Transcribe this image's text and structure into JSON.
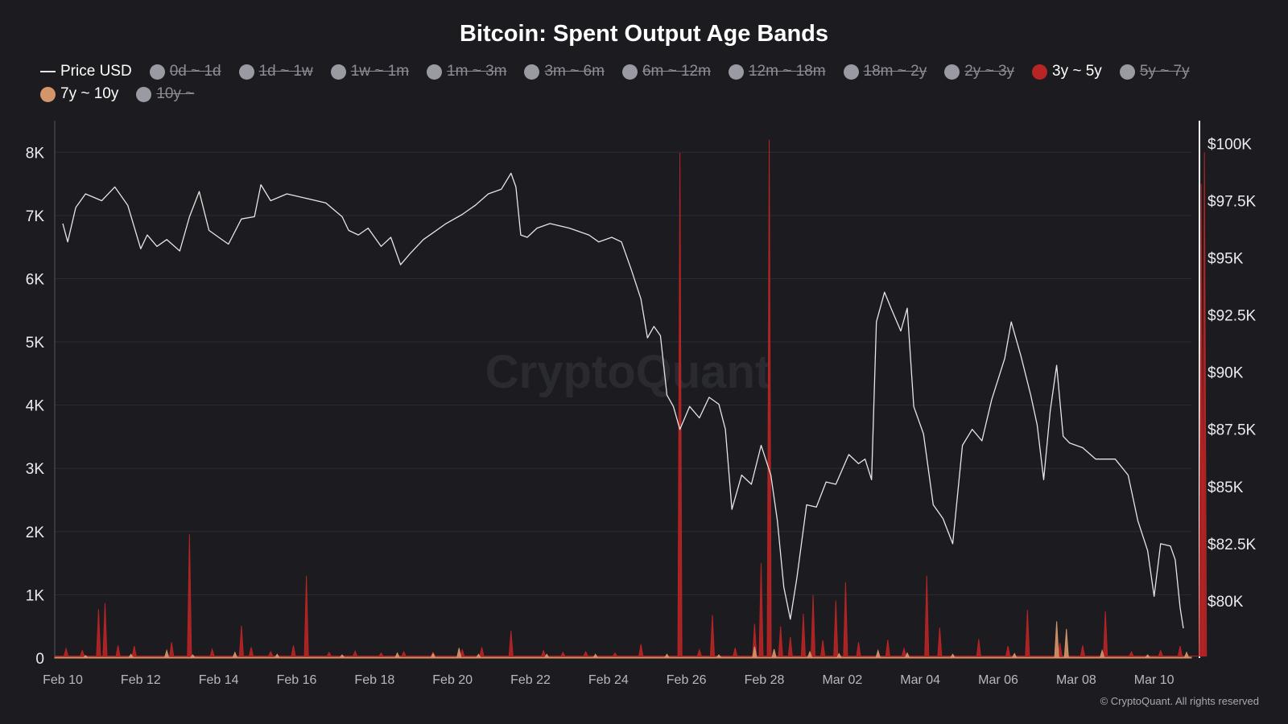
{
  "chart_data": {
    "type": "area",
    "title": "Bitcoin: Spent Output Age Bands",
    "watermark": "CryptoQuant",
    "copyright": "© CryptoQuant. All rights reserved",
    "legend_position": "top",
    "grid": true,
    "x_axis": {
      "range": [
        "2025-02-10",
        "2025-03-10T18:00"
      ],
      "tick_labels": [
        "Feb 10",
        "Feb 12",
        "Feb 14",
        "Feb 16",
        "Feb 18",
        "Feb 20",
        "Feb 22",
        "Feb 24",
        "Feb 26",
        "Feb 28",
        "Mar 02",
        "Mar 04",
        "Mar 06",
        "Mar 08",
        "Mar 10"
      ],
      "tick_dates": [
        "2025-02-10",
        "2025-02-12",
        "2025-02-14",
        "2025-02-16",
        "2025-02-18",
        "2025-02-20",
        "2025-02-22",
        "2025-02-24",
        "2025-02-26",
        "2025-02-28",
        "2025-03-02",
        "2025-03-04",
        "2025-03-06",
        "2025-03-08",
        "2025-03-10"
      ]
    },
    "y_left": {
      "range": [
        0,
        8500
      ],
      "ticks": [
        0,
        1000,
        2000,
        3000,
        4000,
        5000,
        6000,
        7000,
        8000
      ],
      "tick_labels": [
        "0",
        "1K",
        "2K",
        "3K",
        "4K",
        "5K",
        "6K",
        "7K",
        "8K"
      ]
    },
    "y_right": {
      "range": [
        77500,
        101000
      ],
      "ticks": [
        80000,
        82500,
        85000,
        87500,
        90000,
        92500,
        95000,
        97500,
        100000
      ],
      "tick_labels": [
        "$80K",
        "$82.5K",
        "$85K",
        "$87.5K",
        "$90K",
        "$92.5K",
        "$95K",
        "$97.5K",
        "$100K"
      ]
    },
    "legend": [
      {
        "label": "Price USD",
        "color": "#e6e6e6",
        "enabled": true,
        "marker": "line"
      },
      {
        "label": "0d ~ 1d",
        "color": "#9a9aa2",
        "enabled": false
      },
      {
        "label": "1d ~ 1w",
        "color": "#9a9aa2",
        "enabled": false
      },
      {
        "label": "1w ~ 1m",
        "color": "#9a9aa2",
        "enabled": false
      },
      {
        "label": "1m ~ 3m",
        "color": "#9a9aa2",
        "enabled": false
      },
      {
        "label": "3m ~ 6m",
        "color": "#9a9aa2",
        "enabled": false
      },
      {
        "label": "6m ~ 12m",
        "color": "#9a9aa2",
        "enabled": false
      },
      {
        "label": "12m ~ 18m",
        "color": "#9a9aa2",
        "enabled": false
      },
      {
        "label": "18m ~ 2y",
        "color": "#9a9aa2",
        "enabled": false
      },
      {
        "label": "2y ~ 3y",
        "color": "#9a9aa2",
        "enabled": false
      },
      {
        "label": "3y ~ 5y",
        "color": "#b82525",
        "enabled": true
      },
      {
        "label": "5y ~ 7y",
        "color": "#9a9aa2",
        "enabled": false
      },
      {
        "label": "7y ~ 10y",
        "color": "#d4956a",
        "enabled": true
      },
      {
        "label": "10y ~",
        "color": "#9a9aa2",
        "enabled": false
      }
    ],
    "series": [
      {
        "name": "Price USD",
        "axis": "right",
        "type": "line",
        "color": "#e6e6e6",
        "points": [
          [
            "2025-02-10T00:00",
            96500
          ],
          [
            "2025-02-10T03:00",
            95700
          ],
          [
            "2025-02-10T08:00",
            97200
          ],
          [
            "2025-02-10T14:00",
            97800
          ],
          [
            "2025-02-11T00:00",
            97500
          ],
          [
            "2025-02-11T08:00",
            98100
          ],
          [
            "2025-02-11T16:00",
            97300
          ],
          [
            "2025-02-12T00:00",
            95400
          ],
          [
            "2025-02-12T04:00",
            96000
          ],
          [
            "2025-02-12T10:00",
            95500
          ],
          [
            "2025-02-12T16:00",
            95800
          ],
          [
            "2025-02-13T00:00",
            95300
          ],
          [
            "2025-02-13T06:00",
            96800
          ],
          [
            "2025-02-13T12:00",
            97900
          ],
          [
            "2025-02-13T18:00",
            96200
          ],
          [
            "2025-02-14T00:00",
            95900
          ],
          [
            "2025-02-14T06:00",
            95600
          ],
          [
            "2025-02-14T14:00",
            96700
          ],
          [
            "2025-02-14T22:00",
            96800
          ],
          [
            "2025-02-15T02:00",
            98200
          ],
          [
            "2025-02-15T08:00",
            97500
          ],
          [
            "2025-02-15T18:00",
            97800
          ],
          [
            "2025-02-16T06:00",
            97600
          ],
          [
            "2025-02-16T18:00",
            97400
          ],
          [
            "2025-02-17T04:00",
            96800
          ],
          [
            "2025-02-17T08:00",
            96200
          ],
          [
            "2025-02-17T14:00",
            96000
          ],
          [
            "2025-02-17T20:00",
            96300
          ],
          [
            "2025-02-18T04:00",
            95500
          ],
          [
            "2025-02-18T10:00",
            95900
          ],
          [
            "2025-02-18T16:00",
            94700
          ],
          [
            "2025-02-18T22:00",
            95200
          ],
          [
            "2025-02-19T06:00",
            95800
          ],
          [
            "2025-02-19T12:00",
            96100
          ],
          [
            "2025-02-19T20:00",
            96500
          ],
          [
            "2025-02-20T06:00",
            96900
          ],
          [
            "2025-02-20T14:00",
            97300
          ],
          [
            "2025-02-20T22:00",
            97800
          ],
          [
            "2025-02-21T06:00",
            98000
          ],
          [
            "2025-02-21T12:00",
            98700
          ],
          [
            "2025-02-21T15:00",
            98100
          ],
          [
            "2025-02-21T18:00",
            96000
          ],
          [
            "2025-02-21T22:00",
            95900
          ],
          [
            "2025-02-22T04:00",
            96300
          ],
          [
            "2025-02-22T12:00",
            96500
          ],
          [
            "2025-02-23T00:00",
            96300
          ],
          [
            "2025-02-23T12:00",
            96000
          ],
          [
            "2025-02-23T18:00",
            95700
          ],
          [
            "2025-02-24T02:00",
            95900
          ],
          [
            "2025-02-24T08:00",
            95700
          ],
          [
            "2025-02-24T14:00",
            94500
          ],
          [
            "2025-02-24T20:00",
            93200
          ],
          [
            "2025-02-25T00:00",
            91500
          ],
          [
            "2025-02-25T04:00",
            92000
          ],
          [
            "2025-02-25T08:00",
            91600
          ],
          [
            "2025-02-25T12:00",
            89000
          ],
          [
            "2025-02-25T16:00",
            88500
          ],
          [
            "2025-02-25T20:00",
            87500
          ],
          [
            "2025-02-26T02:00",
            88500
          ],
          [
            "2025-02-26T08:00",
            88000
          ],
          [
            "2025-02-26T14:00",
            88900
          ],
          [
            "2025-02-26T20:00",
            88600
          ],
          [
            "2025-02-27T00:00",
            87500
          ],
          [
            "2025-02-27T04:00",
            84000
          ],
          [
            "2025-02-27T10:00",
            85500
          ],
          [
            "2025-02-27T16:00",
            85100
          ],
          [
            "2025-02-27T22:00",
            86800
          ],
          [
            "2025-02-28T04:00",
            85500
          ],
          [
            "2025-02-28T08:00",
            83500
          ],
          [
            "2025-02-28T12:00",
            80600
          ],
          [
            "2025-02-28T16:00",
            79200
          ],
          [
            "2025-02-28T20:00",
            81000
          ],
          [
            "2025-03-01T02:00",
            84200
          ],
          [
            "2025-03-01T08:00",
            84100
          ],
          [
            "2025-03-01T14:00",
            85200
          ],
          [
            "2025-03-01T20:00",
            85100
          ],
          [
            "2025-03-02T04:00",
            86400
          ],
          [
            "2025-03-02T10:00",
            86000
          ],
          [
            "2025-03-02T14:00",
            86200
          ],
          [
            "2025-03-02T18:00",
            85300
          ],
          [
            "2025-03-02T21:00",
            92200
          ],
          [
            "2025-03-03T02:00",
            93500
          ],
          [
            "2025-03-03T06:00",
            92800
          ],
          [
            "2025-03-03T12:00",
            91800
          ],
          [
            "2025-03-03T16:00",
            92800
          ],
          [
            "2025-03-03T20:00",
            88500
          ],
          [
            "2025-03-04T02:00",
            87300
          ],
          [
            "2025-03-04T08:00",
            84200
          ],
          [
            "2025-03-04T14:00",
            83600
          ],
          [
            "2025-03-04T20:00",
            82500
          ],
          [
            "2025-03-05T02:00",
            86800
          ],
          [
            "2025-03-05T08:00",
            87500
          ],
          [
            "2025-03-05T14:00",
            87000
          ],
          [
            "2025-03-05T20:00",
            88800
          ],
          [
            "2025-03-06T04:00",
            90600
          ],
          [
            "2025-03-06T08:00",
            92200
          ],
          [
            "2025-03-06T14:00",
            90700
          ],
          [
            "2025-03-06T20:00",
            89000
          ],
          [
            "2025-03-07T00:00",
            87700
          ],
          [
            "2025-03-07T04:00",
            85300
          ],
          [
            "2025-03-07T08:00",
            88300
          ],
          [
            "2025-03-07T12:00",
            90300
          ],
          [
            "2025-03-07T16:00",
            87200
          ],
          [
            "2025-03-07T20:00",
            86900
          ],
          [
            "2025-03-08T04:00",
            86700
          ],
          [
            "2025-03-08T12:00",
            86200
          ],
          [
            "2025-03-09T00:00",
            86200
          ],
          [
            "2025-03-09T08:00",
            85500
          ],
          [
            "2025-03-09T14:00",
            83500
          ],
          [
            "2025-03-09T20:00",
            82200
          ],
          [
            "2025-03-10T00:00",
            80200
          ],
          [
            "2025-03-10T04:00",
            82500
          ],
          [
            "2025-03-10T10:00",
            82400
          ],
          [
            "2025-03-10T13:00",
            81800
          ],
          [
            "2025-03-10T16:00",
            79700
          ],
          [
            "2025-03-10T18:00",
            78800
          ]
        ]
      },
      {
        "name": "3y ~ 5y",
        "axis": "left",
        "type": "area",
        "color": "#b82525",
        "baseline": 30,
        "points": [
          [
            "2025-02-10T02:00",
            150
          ],
          [
            "2025-02-10T12:00",
            120
          ],
          [
            "2025-02-10T22:00",
            770
          ],
          [
            "2025-02-11T02:00",
            870
          ],
          [
            "2025-02-11T10:00",
            200
          ],
          [
            "2025-02-11T20:00",
            190
          ],
          [
            "2025-02-12T19:00",
            250
          ],
          [
            "2025-02-13T06:00",
            1960
          ],
          [
            "2025-02-13T20:00",
            140
          ],
          [
            "2025-02-14T14:00",
            510
          ],
          [
            "2025-02-14T20:00",
            170
          ],
          [
            "2025-02-15T08:00",
            100
          ],
          [
            "2025-02-15T22:00",
            200
          ],
          [
            "2025-02-16T06:00",
            1300
          ],
          [
            "2025-02-16T20:00",
            90
          ],
          [
            "2025-02-17T12:00",
            110
          ],
          [
            "2025-02-18T04:00",
            80
          ],
          [
            "2025-02-18T18:00",
            100
          ],
          [
            "2025-02-19T12:00",
            90
          ],
          [
            "2025-02-20T06:00",
            130
          ],
          [
            "2025-02-20T18:00",
            170
          ],
          [
            "2025-02-21T12:00",
            430
          ],
          [
            "2025-02-22T08:00",
            120
          ],
          [
            "2025-02-22T20:00",
            90
          ],
          [
            "2025-02-23T10:00",
            100
          ],
          [
            "2025-02-24T04:00",
            80
          ],
          [
            "2025-02-24T20:00",
            220
          ],
          [
            "2025-02-25T20:00",
            7990
          ],
          [
            "2025-02-26T08:00",
            130
          ],
          [
            "2025-02-26T16:00",
            680
          ],
          [
            "2025-02-27T06:00",
            160
          ],
          [
            "2025-02-27T18:00",
            540
          ],
          [
            "2025-02-27T22:00",
            1500
          ],
          [
            "2025-02-28T03:00",
            8200
          ],
          [
            "2025-02-28T10:00",
            500
          ],
          [
            "2025-02-28T16:00",
            330
          ],
          [
            "2025-03-01T00:00",
            700
          ],
          [
            "2025-03-01T06:00",
            990
          ],
          [
            "2025-03-01T12:00",
            280
          ],
          [
            "2025-03-01T20:00",
            910
          ],
          [
            "2025-03-02T02:00",
            1200
          ],
          [
            "2025-03-02T10:00",
            250
          ],
          [
            "2025-03-03T04:00",
            290
          ],
          [
            "2025-03-03T14:00",
            150
          ],
          [
            "2025-03-04T04:00",
            1300
          ],
          [
            "2025-03-04T12:00",
            480
          ],
          [
            "2025-03-05T12:00",
            300
          ],
          [
            "2025-03-06T06:00",
            190
          ],
          [
            "2025-03-06T18:00",
            760
          ],
          [
            "2025-03-07T14:00",
            240
          ],
          [
            "2025-03-08T04:00",
            200
          ],
          [
            "2025-03-08T18:00",
            740
          ],
          [
            "2025-03-09T10:00",
            100
          ],
          [
            "2025-03-10T04:00",
            120
          ],
          [
            "2025-03-10T16:00",
            190
          ],
          [
            "2025-03-11T05:00",
            7500
          ],
          [
            "2025-03-11T07:00",
            8000
          ]
        ]
      },
      {
        "name": "7y ~ 10y",
        "axis": "left",
        "type": "area",
        "color": "#d4956a",
        "baseline": 10,
        "points": [
          [
            "2025-02-10T14:00",
            40
          ],
          [
            "2025-02-11T18:00",
            60
          ],
          [
            "2025-02-12T16:00",
            120
          ],
          [
            "2025-02-13T08:00",
            50
          ],
          [
            "2025-02-14T10:00",
            90
          ],
          [
            "2025-02-15T12:00",
            60
          ],
          [
            "2025-02-17T04:00",
            50
          ],
          [
            "2025-02-18T14:00",
            80
          ],
          [
            "2025-02-19T12:00",
            70
          ],
          [
            "2025-02-20T04:00",
            160
          ],
          [
            "2025-02-20T16:00",
            60
          ],
          [
            "2025-02-22T10:00",
            60
          ],
          [
            "2025-02-23T16:00",
            60
          ],
          [
            "2025-02-25T12:00",
            60
          ],
          [
            "2025-02-26T20:00",
            50
          ],
          [
            "2025-02-27T18:00",
            180
          ],
          [
            "2025-02-28T06:00",
            140
          ],
          [
            "2025-03-01T04:00",
            100
          ],
          [
            "2025-03-01T22:00",
            70
          ],
          [
            "2025-03-02T22:00",
            120
          ],
          [
            "2025-03-03T16:00",
            80
          ],
          [
            "2025-03-04T20:00",
            60
          ],
          [
            "2025-03-06T10:00",
            70
          ],
          [
            "2025-03-07T12:00",
            580
          ],
          [
            "2025-03-07T18:00",
            460
          ],
          [
            "2025-03-08T16:00",
            120
          ],
          [
            "2025-03-09T20:00",
            50
          ],
          [
            "2025-03-10T20:00",
            90
          ]
        ]
      }
    ]
  }
}
